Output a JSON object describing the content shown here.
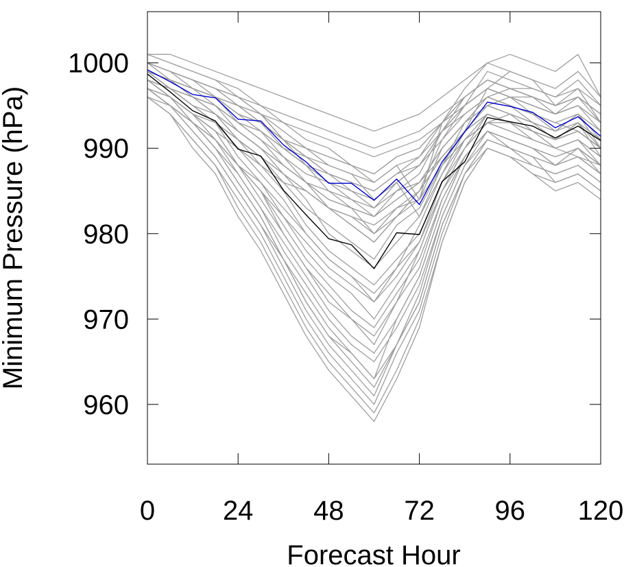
{
  "chart_data": {
    "type": "line",
    "title": "",
    "xlabel": "Forecast Hour",
    "ylabel": "Minimum Pressure (hPa)",
    "xlim": [
      0,
      120
    ],
    "ylim": [
      953,
      1006
    ],
    "x_ticks": [
      0,
      24,
      48,
      72,
      96,
      120
    ],
    "x_tick_labels": [
      "0",
      "24",
      "48",
      "72",
      "96",
      "120"
    ],
    "y_ticks": [
      960,
      970,
      980,
      990,
      1000
    ],
    "y_tick_labels": [
      "960",
      "970",
      "980",
      "990",
      "1000"
    ],
    "grid": false,
    "legend": "none",
    "x": [
      0,
      6,
      12,
      18,
      24,
      30,
      36,
      42,
      48,
      54,
      60,
      66,
      72,
      78,
      84,
      90,
      96,
      102,
      108,
      114,
      120
    ],
    "series": [
      {
        "color": "#0000cc",
        "values": [
          999.2,
          997.8,
          996.3,
          995.9,
          993.4,
          993.2,
          990.4,
          988.4,
          985.9,
          985.9,
          983.9,
          986.4,
          983.4,
          988.4,
          991.9,
          995.4,
          994.9,
          994.2,
          992.4,
          993.7,
          991.4
        ]
      },
      {
        "color": "#000000",
        "values": [
          998.7,
          996.6,
          994.4,
          993.2,
          989.9,
          989.1,
          985.1,
          982.2,
          979.4,
          978.7,
          975.9,
          980.1,
          979.9,
          986.1,
          988.4,
          993.6,
          993.1,
          992.6,
          991.2,
          992.6,
          990.9
        ]
      },
      {
        "color": "#9e9e9e",
        "values": [
          1000,
          999,
          998,
          997,
          995,
          994,
          991,
          990,
          988,
          987,
          984,
          986,
          982,
          987,
          992,
          997,
          999,
          998,
          995,
          996,
          994
        ]
      },
      {
        "color": "#9e9e9e",
        "values": [
          999,
          998,
          997,
          996,
          994,
          992,
          989,
          986,
          983,
          982,
          980,
          983,
          984,
          990,
          993,
          996,
          995,
          994,
          993,
          992,
          990
        ]
      },
      {
        "color": "#9e9e9e",
        "values": [
          1001,
          1000,
          999,
          998,
          997,
          995,
          993,
          991,
          990,
          988,
          986,
          988,
          984,
          993,
          997,
          1000,
          1001,
          1000,
          999,
          1001,
          996
        ]
      },
      {
        "color": "#9e9e9e",
        "values": [
          998,
          996,
          994,
          992,
          988,
          985,
          980,
          976,
          972,
          970,
          967,
          972,
          978,
          985,
          990,
          994,
          993,
          991,
          990,
          989,
          988
        ]
      },
      {
        "color": "#9e9e9e",
        "values": [
          997,
          995,
          993,
          990,
          986,
          982,
          977,
          972,
          968,
          966,
          963,
          970,
          975,
          983,
          989,
          992,
          991,
          990,
          988,
          990,
          987
        ]
      },
      {
        "color": "#9e9e9e",
        "values": [
          999,
          997,
          995,
          993,
          990,
          987,
          984,
          980,
          977,
          975,
          972,
          976,
          981,
          987,
          991,
          993,
          994,
          992,
          991,
          993,
          989
        ]
      },
      {
        "color": "#9e9e9e",
        "values": [
          996,
          994,
          991,
          988,
          984,
          980,
          975,
          970,
          966,
          963,
          960,
          966,
          971,
          980,
          987,
          990,
          989,
          988,
          987,
          988,
          986
        ]
      },
      {
        "color": "#9e9e9e",
        "values": [
          1000,
          999,
          997,
          996,
          993,
          991,
          988,
          986,
          984,
          983,
          982,
          985,
          987,
          992,
          996,
          998,
          997,
          996,
          995,
          997,
          993
        ]
      },
      {
        "color": "#9e9e9e",
        "values": [
          998,
          997,
          995,
          994,
          991,
          989,
          986,
          983,
          981,
          979,
          977,
          981,
          983,
          988,
          992,
          995,
          996,
          994,
          992,
          994,
          991
        ]
      },
      {
        "color": "#9e9e9e",
        "values": [
          997,
          995,
          992,
          989,
          985,
          981,
          976,
          971,
          967,
          964,
          961,
          967,
          973,
          982,
          988,
          991,
          990,
          989,
          986,
          987,
          985
        ]
      },
      {
        "color": "#9e9e9e",
        "values": [
          999,
          998,
          996,
          995,
          992,
          990,
          987,
          984,
          980,
          978,
          976,
          979,
          982,
          988,
          993,
          996,
          995,
          993,
          992,
          994,
          990
        ]
      },
      {
        "color": "#9e9e9e",
        "values": [
          1001,
          1000,
          999,
          998,
          996,
          994,
          991,
          988,
          985,
          983,
          980,
          982,
          985,
          991,
          995,
          999,
          998,
          997,
          996,
          998,
          995
        ]
      },
      {
        "color": "#9e9e9e",
        "values": [
          998,
          996,
          993,
          991,
          987,
          983,
          978,
          974,
          970,
          967,
          965,
          969,
          974,
          982,
          988,
          992,
          991,
          990,
          989,
          990,
          988
        ]
      },
      {
        "color": "#9e9e9e",
        "values": [
          996,
          994,
          990,
          987,
          982,
          978,
          973,
          968,
          964,
          961,
          958,
          963,
          969,
          979,
          986,
          990,
          989,
          987,
          985,
          986,
          984
        ]
      },
      {
        "color": "#9e9e9e",
        "values": [
          1000,
          998,
          997,
          995,
          993,
          991,
          989,
          987,
          986,
          985,
          984,
          986,
          988,
          992,
          995,
          997,
          996,
          995,
          994,
          995,
          992
        ]
      },
      {
        "color": "#9e9e9e",
        "values": [
          999,
          997,
          995,
          993,
          989,
          986,
          982,
          978,
          975,
          973,
          970,
          974,
          978,
          985,
          990,
          993,
          992,
          991,
          990,
          991,
          989
        ]
      },
      {
        "color": "#9e9e9e",
        "values": [
          997,
          996,
          994,
          992,
          988,
          985,
          981,
          977,
          974,
          971,
          969,
          973,
          977,
          984,
          989,
          992,
          991,
          990,
          988,
          989,
          987
        ]
      },
      {
        "color": "#9e9e9e",
        "values": [
          998,
          997,
          996,
          995,
          993,
          992,
          990,
          988,
          987,
          986,
          985,
          987,
          988,
          991,
          994,
          996,
          997,
          996,
          994,
          996,
          993
        ]
      },
      {
        "color": "#9e9e9e",
        "values": [
          1000,
          999,
          998,
          996,
          994,
          993,
          990,
          988,
          986,
          984,
          982,
          984,
          986,
          990,
          993,
          995,
          994,
          993,
          991,
          992,
          990
        ]
      },
      {
        "color": "#9e9e9e",
        "values": [
          999,
          998,
          996,
          994,
          991,
          988,
          985,
          981,
          978,
          976,
          974,
          977,
          980,
          986,
          991,
          994,
          993,
          992,
          991,
          993,
          990
        ]
      },
      {
        "color": "#9e9e9e",
        "values": [
          997,
          995,
          993,
          990,
          987,
          983,
          979,
          975,
          971,
          968,
          966,
          970,
          975,
          983,
          989,
          992,
          990,
          989,
          988,
          989,
          987
        ]
      },
      {
        "color": "#9e9e9e",
        "values": [
          998,
          996,
          994,
          992,
          990,
          988,
          986,
          985,
          983,
          982,
          981,
          983,
          985,
          989,
          992,
          994,
          993,
          992,
          991,
          992,
          990
        ]
      },
      {
        "color": "#9e9e9e",
        "values": [
          1001,
          1001,
          1000,
          999,
          998,
          997,
          996,
          995,
          994,
          993,
          992,
          993,
          994,
          996,
          998,
          1000,
          999,
          998,
          997,
          999,
          996
        ]
      },
      {
        "color": "#9e9e9e",
        "values": [
          999,
          998,
          997,
          996,
          995,
          993,
          991,
          989,
          987,
          986,
          985,
          987,
          989,
          993,
          996,
          998,
          997,
          996,
          995,
          996,
          994
        ]
      },
      {
        "color": "#9e9e9e",
        "values": [
          996,
          995,
          993,
          991,
          988,
          985,
          982,
          979,
          976,
          974,
          972,
          975,
          979,
          986,
          990,
          993,
          992,
          991,
          990,
          991,
          988
        ]
      },
      {
        "color": "#9e9e9e",
        "values": [
          998,
          997,
          995,
          993,
          991,
          989,
          987,
          985,
          983,
          981,
          979,
          982,
          984,
          988,
          991,
          993,
          993,
          992,
          990,
          991,
          989
        ]
      },
      {
        "color": "#9e9e9e",
        "values": [
          1000,
          999,
          998,
          997,
          996,
          995,
          994,
          993,
          992,
          991,
          990,
          991,
          992,
          994,
          996,
          998,
          997,
          997,
          996,
          997,
          995
        ]
      },
      {
        "color": "#9e9e9e",
        "values": [
          997,
          995,
          992,
          989,
          985,
          981,
          977,
          973,
          969,
          966,
          963,
          967,
          972,
          981,
          987,
          991,
          990,
          988,
          987,
          988,
          986
        ]
      },
      {
        "color": "#9e9e9e",
        "values": [
          999,
          998,
          996,
          995,
          993,
          992,
          990,
          989,
          988,
          987,
          986,
          988,
          989,
          992,
          994,
          996,
          995,
          994,
          993,
          994,
          992
        ]
      },
      {
        "color": "#9e9e9e",
        "values": [
          998,
          996,
          994,
          991,
          988,
          984,
          980,
          976,
          973,
          970,
          968,
          972,
          976,
          984,
          989,
          992,
          991,
          990,
          989,
          990,
          988
        ]
      },
      {
        "color": "#9e9e9e",
        "values": [
          999,
          997,
          996,
          994,
          992,
          990,
          988,
          986,
          984,
          983,
          982,
          984,
          986,
          990,
          993,
          995,
          994,
          993,
          992,
          993,
          991
        ]
      },
      {
        "color": "#9e9e9e",
        "values": [
          997,
          996,
          994,
          993,
          991,
          989,
          987,
          985,
          983,
          981,
          979,
          982,
          985,
          989,
          992,
          994,
          993,
          992,
          991,
          992,
          990
        ]
      },
      {
        "color": "#9e9e9e",
        "values": [
          1000,
          999,
          998,
          997,
          995,
          993,
          991,
          989,
          987,
          985,
          983,
          986,
          988,
          992,
          995,
          997,
          996,
          995,
          994,
          995,
          993
        ]
      },
      {
        "color": "#9e9e9e",
        "values": [
          996,
          994,
          991,
          988,
          983,
          979,
          974,
          969,
          965,
          962,
          959,
          964,
          970,
          979,
          986,
          990,
          989,
          987,
          986,
          987,
          985
        ]
      },
      {
        "color": "#9e9e9e",
        "values": [
          999,
          998,
          997,
          996,
          994,
          993,
          991,
          990,
          989,
          988,
          987,
          989,
          990,
          993,
          995,
          997,
          996,
          995,
          994,
          995,
          993
        ]
      },
      {
        "color": "#9e9e9e",
        "values": [
          998,
          997,
          996,
          994,
          992,
          990,
          988,
          986,
          985,
          984,
          983,
          985,
          986,
          989,
          992,
          994,
          993,
          992,
          991,
          992,
          990
        ]
      },
      {
        "color": "#9e9e9e",
        "values": [
          997,
          995,
          993,
          991,
          988,
          986,
          983,
          980,
          977,
          975,
          973,
          976,
          979,
          985,
          989,
          992,
          991,
          990,
          989,
          990,
          988
        ]
      },
      {
        "color": "#9e9e9e",
        "values": [
          1000,
          999,
          998,
          997,
          996,
          994,
          992,
          990,
          989,
          988,
          987,
          989,
          990,
          993,
          996,
          998,
          997,
          996,
          995,
          996,
          994
        ]
      },
      {
        "color": "#9e9e9e",
        "values": [
          998,
          996,
          993,
          990,
          986,
          982,
          977,
          972,
          968,
          965,
          962,
          967,
          972,
          981,
          987,
          991,
          990,
          989,
          988,
          989,
          987
        ]
      },
      {
        "color": "#9e9e9e",
        "values": [
          999,
          998,
          997,
          996,
          995,
          994,
          993,
          992,
          991,
          990,
          989,
          990,
          991,
          993,
          995,
          997,
          996,
          996,
          995,
          996,
          994
        ]
      }
    ]
  }
}
